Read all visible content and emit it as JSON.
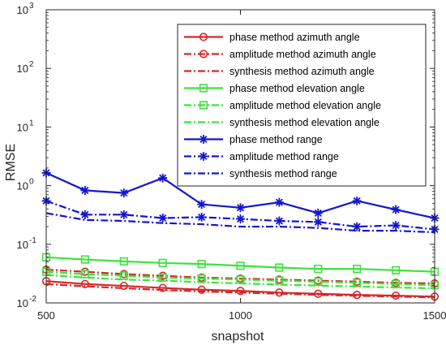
{
  "chart_data": {
    "type": "line",
    "xlabel": "snapshot",
    "ylabel": "RMSE",
    "xlim": [
      500,
      1500
    ],
    "ylim": [
      0.01,
      1000
    ],
    "yscale": "log",
    "grid": false,
    "legend_position": "top-right",
    "x": [
      500,
      600,
      700,
      800,
      900,
      1000,
      1100,
      1200,
      1300,
      1400,
      1500
    ],
    "x_ticks": [
      500,
      1000,
      1500
    ],
    "x_tick_labels": [
      "500",
      "1000",
      "1500"
    ],
    "y_ticks": [
      0.01,
      0.1,
      1,
      10,
      100,
      1000
    ],
    "y_tick_labels": [
      {
        "base": "10",
        "exp": "-2"
      },
      {
        "base": "10",
        "exp": "-1"
      },
      {
        "base": "10",
        "exp": "0"
      },
      {
        "base": "10",
        "exp": "1"
      },
      {
        "base": "10",
        "exp": "2"
      },
      {
        "base": "10",
        "exp": "3"
      }
    ],
    "series": [
      {
        "name": "phase method azimuth angle",
        "color": "#d62728",
        "dash": "solid",
        "marker": "circle",
        "values": [
          0.0235,
          0.021,
          0.0195,
          0.018,
          0.0168,
          0.016,
          0.015,
          0.0143,
          0.0137,
          0.0133,
          0.0128
        ]
      },
      {
        "name": "amplitude method azimuth angle",
        "color": "#d62728",
        "dash": "dashdot",
        "marker": "circle",
        "values": [
          0.037,
          0.034,
          0.031,
          0.029,
          0.027,
          0.026,
          0.025,
          0.024,
          0.023,
          0.022,
          0.0215
        ]
      },
      {
        "name": "synthesis method azimuth angle",
        "color": "#d62728",
        "dash": "dashdot",
        "marker": "none",
        "values": [
          0.021,
          0.0192,
          0.0178,
          0.0166,
          0.0157,
          0.015,
          0.0143,
          0.0137,
          0.0132,
          0.0128,
          0.0124
        ]
      },
      {
        "name": "phase method elevation angle",
        "color": "#3ee23e",
        "dash": "solid",
        "marker": "square",
        "values": [
          0.06,
          0.055,
          0.051,
          0.048,
          0.046,
          0.043,
          0.04,
          0.038,
          0.038,
          0.036,
          0.034
        ]
      },
      {
        "name": "amplitude method elevation angle",
        "color": "#3ee23e",
        "dash": "dashdot",
        "marker": "square",
        "values": [
          0.034,
          0.031,
          0.029,
          0.027,
          0.026,
          0.025,
          0.024,
          0.023,
          0.022,
          0.021,
          0.02
        ]
      },
      {
        "name": "synthesis method elevation angle",
        "color": "#3ee23e",
        "dash": "dashdot",
        "marker": "none",
        "values": [
          0.03,
          0.027,
          0.025,
          0.024,
          0.0225,
          0.0215,
          0.0205,
          0.0197,
          0.019,
          0.0183,
          0.0177
        ]
      },
      {
        "name": "phase method range",
        "color": "#1515d0",
        "dash": "solid",
        "marker": "star",
        "values": [
          1.65,
          0.83,
          0.75,
          1.35,
          0.48,
          0.42,
          0.52,
          0.34,
          0.55,
          0.39,
          0.28
        ]
      },
      {
        "name": "amplitude method range",
        "color": "#1515d0",
        "dash": "dashdot",
        "marker": "star",
        "values": [
          0.55,
          0.32,
          0.32,
          0.28,
          0.29,
          0.27,
          0.25,
          0.24,
          0.2,
          0.21,
          0.18
        ]
      },
      {
        "name": "synthesis method range",
        "color": "#1515d0",
        "dash": "dashdot",
        "marker": "none",
        "values": [
          0.34,
          0.26,
          0.25,
          0.23,
          0.22,
          0.2,
          0.2,
          0.19,
          0.17,
          0.17,
          0.16
        ]
      }
    ]
  }
}
